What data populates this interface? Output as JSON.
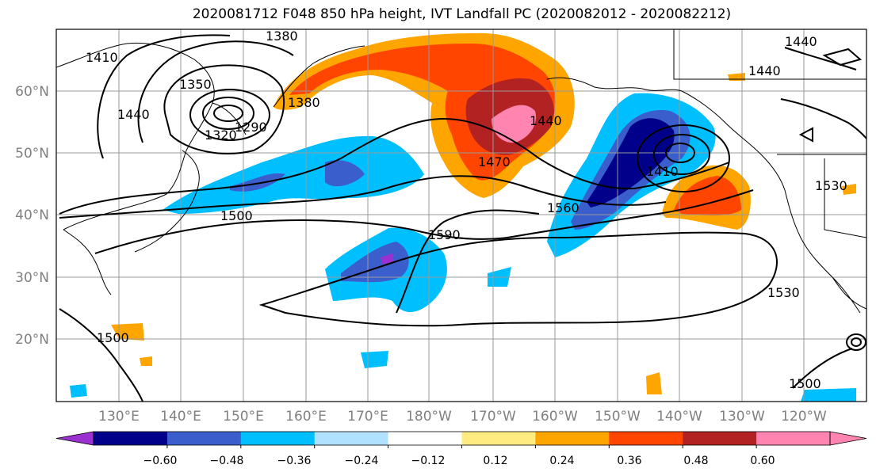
{
  "title": "2020081712 F048 850 hPa height, IVT Landfall PC (2020082012 - 2020082212)",
  "map": {
    "lon_labels": [
      "130°E",
      "140°E",
      "150°E",
      "160°E",
      "170°E",
      "180°W",
      "170°W",
      "160°W",
      "150°W",
      "140°W",
      "130°W",
      "120°W"
    ],
    "lat_labels": [
      "60°N",
      "50°N",
      "40°N",
      "30°N",
      "20°N"
    ],
    "contour_labels": [
      "1380",
      "1410",
      "1350",
      "1320",
      "1290",
      "1380",
      "1440",
      "1470",
      "1500",
      "1440",
      "1410",
      "1560",
      "1590",
      "1530",
      "1500",
      "1440",
      "1440",
      "1530",
      "1500"
    ]
  },
  "colorbar": {
    "ticks": [
      "−0.60",
      "−0.48",
      "−0.36",
      "−0.24",
      "−0.12",
      "0.12",
      "0.24",
      "0.36",
      "0.48",
      "0.60"
    ],
    "colors": [
      "#9b30d0",
      "#00008b",
      "#3a5fcd",
      "#00bfff",
      "#b0e2ff",
      "#ffffff",
      "#ffeb80",
      "#ffa500",
      "#ff4500",
      "#b22222",
      "#ff85b0",
      "#ff85b0"
    ]
  }
}
